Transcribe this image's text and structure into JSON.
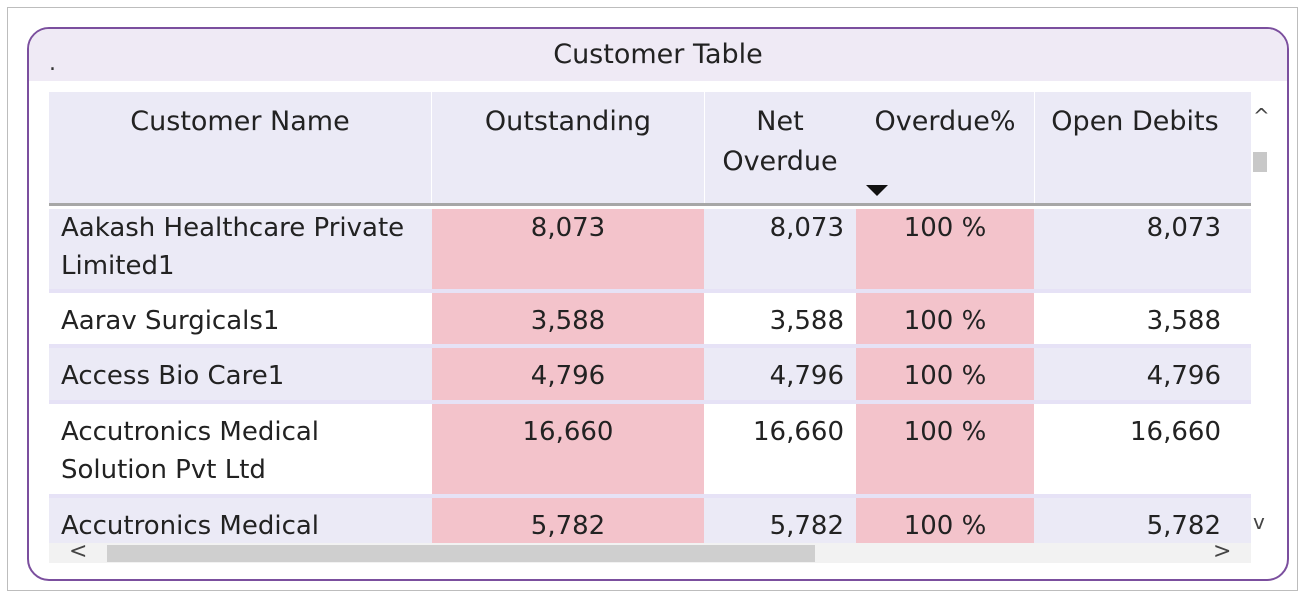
{
  "visual": {
    "title": "Customer Table",
    "title_marker": ".",
    "accent_color": "#7b4f9e",
    "highlight_color": "#f3c3cb"
  },
  "table": {
    "columns": [
      {
        "label": "Customer Name"
      },
      {
        "label": "Outstanding"
      },
      {
        "label": "Net Overdue"
      },
      {
        "label": "Overdue%",
        "sorted": "descending"
      },
      {
        "label": "Open Debits"
      }
    ],
    "rows": [
      {
        "name": "Aakash Healthcare Private Limited1",
        "outstanding": "8,073",
        "net_overdue": "8,073",
        "overdue_pct": "100 %",
        "open_debits": "8,073"
      },
      {
        "name": "Aarav Surgicals1",
        "outstanding": "3,588",
        "net_overdue": "3,588",
        "overdue_pct": "100 %",
        "open_debits": "3,588"
      },
      {
        "name": "Access Bio Care1",
        "outstanding": "4,796",
        "net_overdue": "4,796",
        "overdue_pct": "100 %",
        "open_debits": "4,796"
      },
      {
        "name": "Accutronics Medical Solution Pvt Ltd",
        "outstanding": "16,660",
        "net_overdue": "16,660",
        "overdue_pct": "100 %",
        "open_debits": "16,660"
      },
      {
        "name": "Accutronics Medical",
        "outstanding": "5,782",
        "net_overdue": "5,782",
        "overdue_pct": "100 %",
        "open_debits": "5,782"
      }
    ]
  },
  "scrollbars": {
    "up": "^",
    "down": "v",
    "left": "<",
    "right": ">",
    "up_icon": "chevron-up-icon",
    "down_icon": "chevron-down-icon",
    "left_icon": "chevron-left-icon",
    "right_icon": "chevron-right-icon"
  }
}
